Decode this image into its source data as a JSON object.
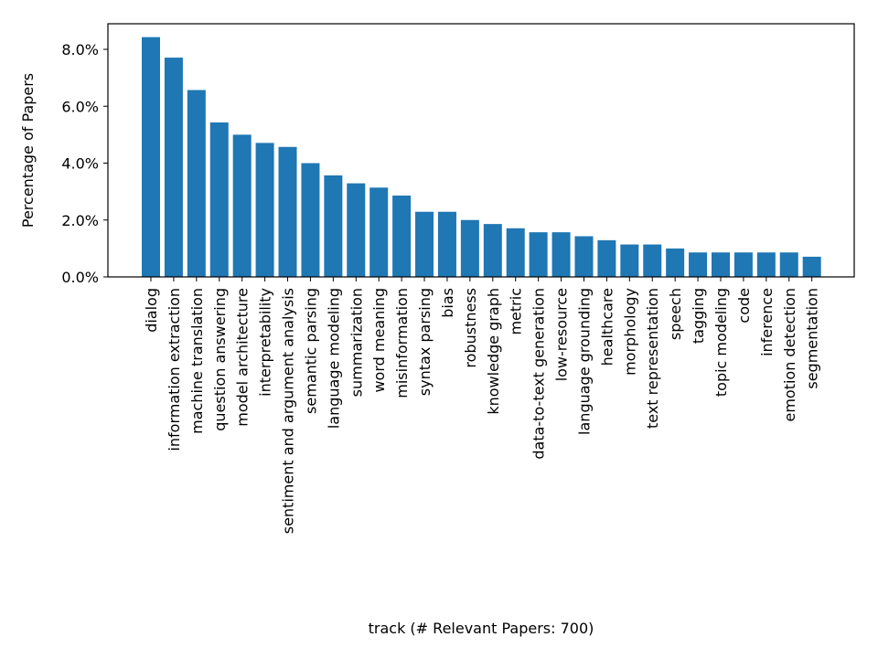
{
  "chart_data": {
    "type": "bar",
    "title": "",
    "xlabel": "track (# Relevant Papers: 700)",
    "ylabel": "Percentage of Papers",
    "ylim": [
      0,
      8.9
    ],
    "yticks": [
      "0.0%",
      "2.0%",
      "4.0%",
      "6.0%",
      "8.0%"
    ],
    "ytick_values": [
      0,
      2,
      4,
      6,
      8
    ],
    "grid": false,
    "bar_color": "#1f77b4",
    "categories": [
      "dialog",
      "information extraction",
      "machine translation",
      "question answering",
      "model architecture",
      "interpretability",
      "sentiment and argument analysis",
      "semantic parsing",
      "language modeling",
      "summarization",
      "word meaning",
      "misinformation",
      "syntax parsing",
      "bias",
      "robustness",
      "knowledge graph",
      "metric",
      "data-to-text generation",
      "low-resource",
      "language grounding",
      "healthcare",
      "morphology",
      "text representation",
      "speech",
      "tagging",
      "topic modeling",
      "code",
      "inference",
      "emotion detection",
      "segmentation"
    ],
    "values": [
      8.43,
      7.71,
      6.57,
      5.43,
      5.0,
      4.71,
      4.57,
      4.0,
      3.57,
      3.29,
      3.14,
      2.86,
      2.29,
      2.29,
      2.0,
      1.86,
      1.71,
      1.57,
      1.57,
      1.43,
      1.29,
      1.14,
      1.14,
      1.0,
      0.86,
      0.86,
      0.86,
      0.86,
      0.86,
      0.71
    ]
  }
}
